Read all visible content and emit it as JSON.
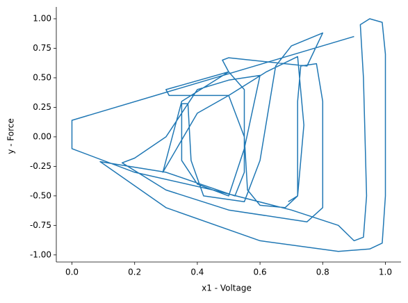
{
  "chart_data": {
    "type": "line",
    "xlabel": "x1 - Voltage",
    "ylabel": "y - Force",
    "xlim": [
      -0.05,
      1.05
    ],
    "ylim": [
      -1.06,
      1.1
    ],
    "xticks": [
      {
        "value": 0,
        "label": "0.0"
      },
      0.2,
      0.4,
      0.6,
      0.8,
      {
        "value": 1,
        "label": "1.0"
      }
    ],
    "yticks": [
      {
        "value": -1,
        "label": "-1.00"
      },
      -0.75,
      {
        "value": -0.5,
        "label": "-0.50"
      },
      -0.25,
      {
        "value": 0,
        "label": "0.00"
      },
      0.25,
      {
        "value": 0.5,
        "label": "0.50"
      },
      0.75,
      {
        "value": 1,
        "label": "1.00"
      }
    ],
    "color": "#1f77b4",
    "x": [
      0.9,
      0.0,
      0.0,
      0.2,
      0.45,
      0.7,
      0.85,
      0.9,
      0.93,
      0.94,
      0.93,
      0.92,
      0.95,
      0.99,
      1.0,
      1.0,
      0.99,
      0.95,
      0.85,
      0.6,
      0.3,
      0.09,
      0.3,
      0.52,
      0.55,
      0.55,
      0.5,
      0.3,
      0.31,
      0.5,
      0.55,
      0.56,
      0.6,
      0.68,
      0.72,
      0.72,
      0.73,
      0.78,
      0.8,
      0.8,
      0.75,
      0.5,
      0.3,
      0.16,
      0.2,
      0.3,
      0.4,
      0.5,
      0.6,
      0.55,
      0.5,
      0.4,
      0.35,
      0.35,
      0.37,
      0.38,
      0.42,
      0.55,
      0.6,
      0.65,
      0.7,
      0.8,
      0.75,
      0.5,
      0.48,
      0.5,
      0.35,
      0.29,
      0.4,
      0.5,
      0.62,
      0.72,
      0.74,
      0.72,
      0.69
    ],
    "y": [
      0.85,
      0.14,
      -0.1,
      -0.3,
      -0.45,
      -0.62,
      -0.75,
      -0.88,
      -0.85,
      -0.5,
      0.5,
      0.95,
      1.0,
      0.97,
      0.7,
      -0.5,
      -0.9,
      -0.95,
      -0.97,
      -0.88,
      -0.6,
      -0.21,
      -0.3,
      -0.5,
      -0.3,
      0.4,
      0.55,
      0.4,
      0.35,
      0.35,
      0.0,
      -0.45,
      -0.58,
      -0.6,
      -0.5,
      0.3,
      0.6,
      0.62,
      0.3,
      -0.6,
      -0.72,
      -0.62,
      -0.45,
      -0.22,
      -0.18,
      0.0,
      0.4,
      0.48,
      0.52,
      -0.1,
      -0.5,
      -0.4,
      -0.2,
      0.28,
      0.28,
      -0.2,
      -0.5,
      -0.55,
      -0.2,
      0.6,
      0.77,
      0.88,
      0.6,
      0.67,
      0.65,
      0.55,
      0.3,
      -0.3,
      0.2,
      0.35,
      0.55,
      0.68,
      0.1,
      -0.5,
      -0.55
    ]
  }
}
